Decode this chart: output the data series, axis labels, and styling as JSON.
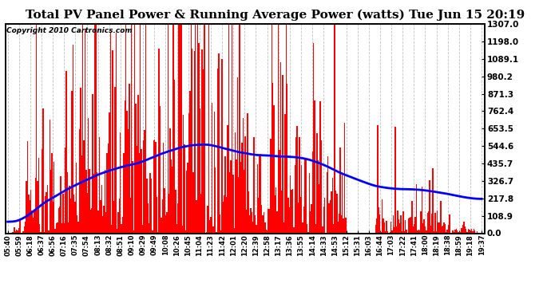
{
  "title": "Total PV Panel Power & Running Average Power (watts) Tue Jun 15 20:19",
  "copyright": "Copyright 2010 Cartronics.com",
  "ylabel_right_ticks": [
    0.0,
    108.9,
    217.8,
    326.7,
    435.7,
    544.6,
    653.5,
    762.4,
    871.3,
    980.2,
    1089.1,
    1198.0,
    1307.0
  ],
  "ylim": [
    0,
    1307.0
  ],
  "bar_color": "#FF0000",
  "line_color": "#0000FF",
  "background_color": "#FFFFFF",
  "grid_color": "#C0C0C0",
  "title_fontsize": 11,
  "x_labels": [
    "05:40",
    "05:59",
    "06:18",
    "06:37",
    "06:56",
    "07:16",
    "07:35",
    "07:54",
    "08:13",
    "08:32",
    "08:51",
    "09:10",
    "09:29",
    "09:49",
    "10:08",
    "10:26",
    "10:45",
    "11:04",
    "11:23",
    "11:42",
    "12:01",
    "12:20",
    "12:39",
    "12:58",
    "13:17",
    "13:36",
    "13:55",
    "14:14",
    "14:33",
    "14:53",
    "15:12",
    "15:31",
    "16:03",
    "16:44",
    "17:03",
    "17:22",
    "17:41",
    "18:00",
    "18:19",
    "18:38",
    "18:59",
    "19:18",
    "19:37"
  ],
  "n_labels": 43
}
